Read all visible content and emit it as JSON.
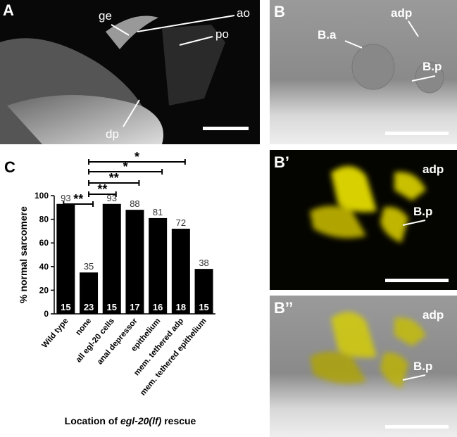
{
  "panels": [
    {
      "label": "A",
      "annotations": [
        "ge",
        "ao",
        "po",
        "dp"
      ]
    },
    {
      "label": "B",
      "annotations": [
        "adp",
        "B.a",
        "B.p"
      ]
    },
    {
      "label": "B’",
      "annotations": [
        "adp",
        "B.p"
      ]
    },
    {
      "label": "B’’",
      "annotations": [
        "adp",
        "B.p"
      ]
    }
  ],
  "chart_data": {
    "type": "bar",
    "panel_label": "C",
    "categories": [
      "Wild type",
      "none",
      "all egl-20 cells",
      "anal depressor",
      "epithelium",
      "mem. tethered adp",
      "mem. tethered epithelium"
    ],
    "values": [
      93,
      35,
      93,
      88,
      81,
      72,
      38
    ],
    "n": [
      15,
      23,
      15,
      17,
      16,
      18,
      15
    ],
    "color": "#000000",
    "ylim": [
      0,
      100
    ],
    "yticks": [
      0,
      20,
      40,
      60,
      80,
      100
    ],
    "ylabel": "% normal sarcomere",
    "xlabel": "Location of",
    "xlabel_italic": "egl-20(lf)",
    "xlabel_suffix": "rescue",
    "significance": [
      {
        "label": "**",
        "from": "Wild type",
        "to": "none"
      },
      {
        "label": "**",
        "from": "none",
        "to": "all egl-20 cells"
      },
      {
        "label": "**",
        "from": "none",
        "to": "anal depressor"
      },
      {
        "label": "*",
        "from": "none",
        "to": "epithelium"
      },
      {
        "label": "*",
        "from": "none",
        "to": "mem. tethered adp"
      }
    ]
  }
}
